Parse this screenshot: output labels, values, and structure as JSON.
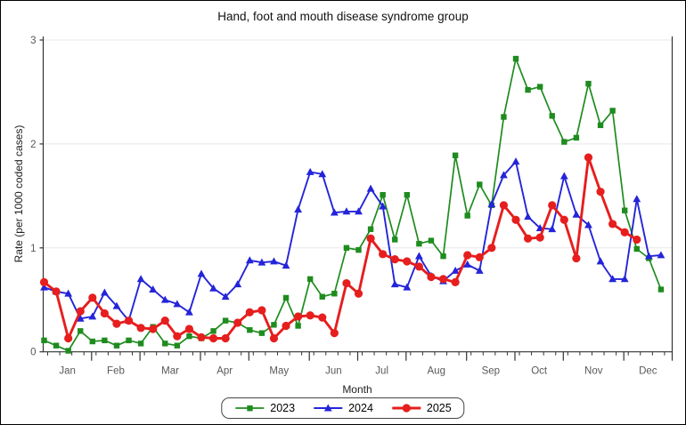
{
  "chart_data": {
    "type": "line",
    "title": "Hand, foot and mouth disease syndrome group",
    "xlabel": "Month",
    "ylabel": "Rate (per 1000 coded cases)",
    "ylim": [
      0,
      3
    ],
    "yticks": [
      0,
      1,
      2,
      3
    ],
    "grid": "horizontal light gridlines at y=1,2,3",
    "legend_position": "bottom center",
    "x_unit": "week (52 weekly points per year)",
    "months": [
      {
        "label": "Jan",
        "weeks": 4
      },
      {
        "label": "Feb",
        "weeks": 4
      },
      {
        "label": "Mar",
        "weeks": 5
      },
      {
        "label": "Apr",
        "weeks": 4
      },
      {
        "label": "May",
        "weeks": 5
      },
      {
        "label": "Jun",
        "weeks": 4
      },
      {
        "label": "Jul",
        "weeks": 4
      },
      {
        "label": "Aug",
        "weeks": 5
      },
      {
        "label": "Sep",
        "weeks": 4
      },
      {
        "label": "Oct",
        "weeks": 4
      },
      {
        "label": "Nov",
        "weeks": 5
      },
      {
        "label": "Dec",
        "weeks": 4
      }
    ],
    "series": [
      {
        "name": "2023",
        "color": "#1e8c1e",
        "marker": "square",
        "line_width": 1.7,
        "values": [
          0.11,
          0.06,
          0.01,
          0.2,
          0.1,
          0.11,
          0.06,
          0.11,
          0.08,
          0.24,
          0.08,
          0.06,
          0.15,
          0.13,
          0.2,
          0.3,
          0.28,
          0.21,
          0.18,
          0.26,
          0.52,
          0.25,
          0.7,
          0.53,
          0.56,
          1.0,
          0.98,
          1.18,
          1.51,
          1.08,
          1.51,
          1.04,
          1.07,
          0.92,
          1.89,
          1.31,
          1.61,
          1.41,
          2.26,
          2.82,
          2.52,
          2.55,
          2.27,
          2.02,
          2.06,
          2.58,
          2.18,
          2.32,
          1.36,
          0.99,
          0.9,
          0.6
        ]
      },
      {
        "name": "2024",
        "color": "#2424d9",
        "marker": "triangle",
        "line_width": 1.9,
        "values": [
          0.62,
          0.58,
          0.56,
          0.32,
          0.34,
          0.57,
          0.44,
          0.3,
          0.7,
          0.6,
          0.5,
          0.46,
          0.38,
          0.75,
          0.61,
          0.53,
          0.65,
          0.88,
          0.86,
          0.87,
          0.83,
          1.37,
          1.73,
          1.71,
          1.34,
          1.35,
          1.35,
          1.57,
          1.4,
          0.65,
          0.62,
          0.92,
          0.73,
          0.68,
          0.78,
          0.84,
          0.78,
          1.42,
          1.7,
          1.83,
          1.3,
          1.19,
          1.18,
          1.69,
          1.32,
          1.22,
          0.87,
          0.7,
          0.7,
          1.47,
          0.92,
          0.93
        ]
      },
      {
        "name": "2025",
        "color": "#e61e1e",
        "marker": "circle",
        "line_width": 2.9,
        "values": [
          0.67,
          0.58,
          0.13,
          0.39,
          0.52,
          0.37,
          0.27,
          0.3,
          0.23,
          0.22,
          0.3,
          0.15,
          0.22,
          0.14,
          0.13,
          0.13,
          0.28,
          0.38,
          0.4,
          0.13,
          0.25,
          0.34,
          0.35,
          0.33,
          0.18,
          0.66,
          0.56,
          1.09,
          0.94,
          0.89,
          0.87,
          0.82,
          0.72,
          0.7,
          0.67,
          0.93,
          0.91,
          1.0,
          1.41,
          1.27,
          1.09,
          1.1,
          1.41,
          1.27,
          0.9,
          1.87,
          1.54,
          1.23,
          1.15,
          1.08
        ]
      }
    ]
  }
}
